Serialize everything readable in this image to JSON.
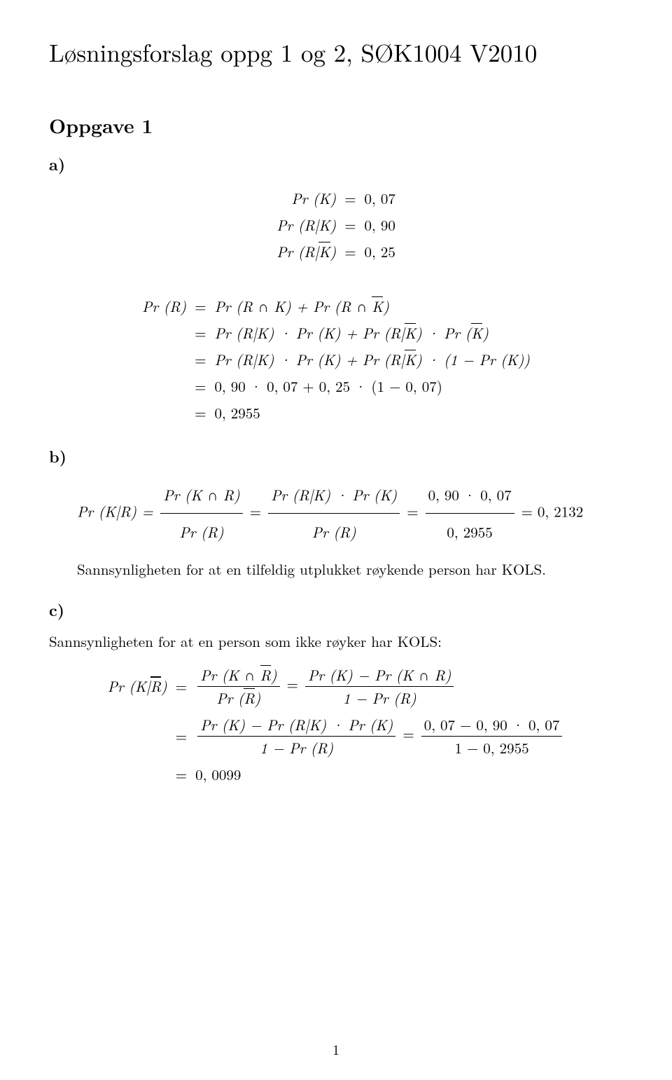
{
  "doc": {
    "title": "Løsningsforslag oppg 1 og 2, SØK1004 V2010",
    "page_number": "1"
  },
  "oppg1": {
    "heading": "Oppgave 1",
    "a": {
      "label": "a)",
      "r1_l": "Pr (K)",
      "r1_m": "=",
      "r1_r": "0, 07",
      "r2_l": "Pr (R|K)",
      "r2_m": "=",
      "r2_r": "0, 90",
      "r3_l_pre": "Pr (R|",
      "r3_l_bar": "K",
      "r3_l_post": ")",
      "r3_m": "=",
      "r3_r": "0, 25"
    },
    "aR": {
      "r1_l": "Pr (R)",
      "r1_m": "=",
      "r1_r_a": "Pr (R ∩ K) + Pr (R ∩",
      "r1_r_bar": "K",
      "r1_r_b": ")",
      "r2_m": "=",
      "r2_r_a": "Pr (R|K) · Pr (K) + Pr (R|",
      "r2_r_bar1": "K",
      "r2_r_b": ") · Pr (",
      "r2_r_bar2": "K",
      "r2_r_c": ")",
      "r3_m": "=",
      "r3_r_a": "Pr (R|K) · Pr (K) + Pr (R|",
      "r3_r_bar": "K",
      "r3_r_b": ") · (1 − Pr (K))",
      "r4_m": "=",
      "r4_r": "0, 90 · 0, 07 + 0, 25 · (1 − 0, 07)",
      "r5_m": "=",
      "r5_r": "0, 2955"
    },
    "b": {
      "label": "b)",
      "lhs": "Pr (K|R) = ",
      "f1_num": "Pr (K ∩ R)",
      "f1_den": "Pr (R)",
      "eq1": " = ",
      "f2_num": "Pr (R|K) · Pr (K)",
      "f2_den": "Pr (R)",
      "eq2": " = ",
      "f3_num": "0, 90 · 0, 07",
      "f3_den": "0, 2955",
      "eq3": " = 0, 2132",
      "text": "Sannsynligheten for at en tilfeldig utplukket røykende person har KOLS."
    },
    "c": {
      "label": "c)",
      "text": "Sannsynligheten for at en person som ikke røyker har KOLS:",
      "lhs_a": "Pr (K|",
      "lhs_bar": "R",
      "lhs_b": ")",
      "r1_m": "=",
      "f1_num_a": "Pr (K ∩ ",
      "f1_num_bar": "R",
      "f1_num_b": ")",
      "f1_den_a": "Pr (",
      "f1_den_bar": "R",
      "f1_den_b": ")",
      "r1_eq": " = ",
      "f2_num": "Pr (K) − Pr (K ∩ R)",
      "f2_den": "1 − Pr (R)",
      "r2_m": "=",
      "f3_num": "Pr (K) − Pr (R|K) · Pr (K)",
      "f3_den": "1 − Pr (R)",
      "r2_eq": " = ",
      "f4_num": "0, 07 − 0, 90 · 0, 07",
      "f4_den": "1 − 0, 2955",
      "r3_m": "=",
      "r3_r": "0, 0099"
    }
  }
}
